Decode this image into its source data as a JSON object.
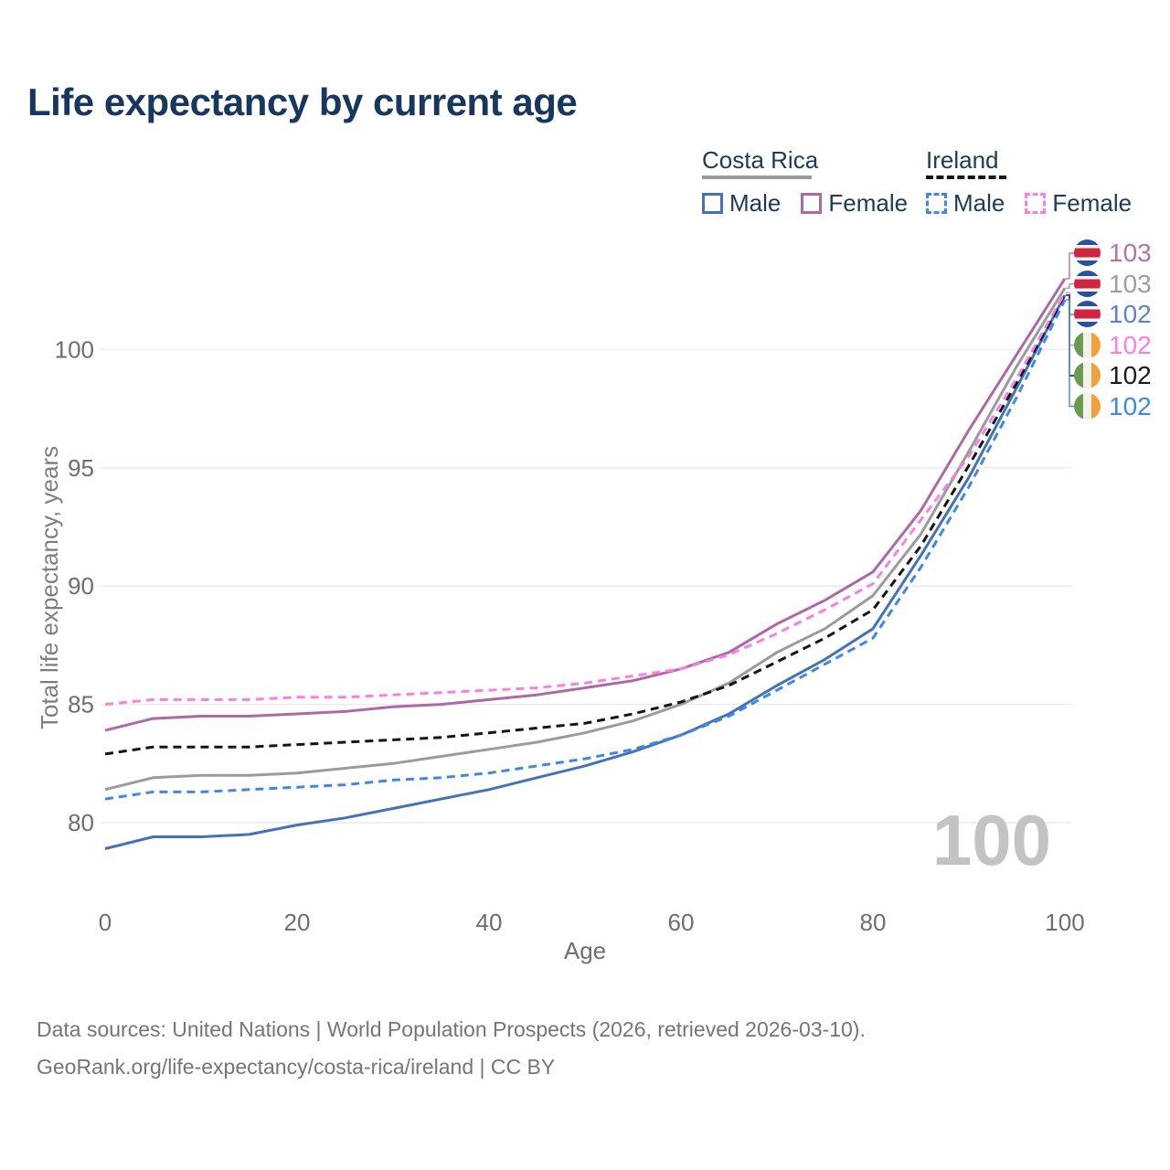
{
  "header": {
    "title": "Life expectancy by current age"
  },
  "legend": {
    "groups": [
      {
        "country": "Costa Rica",
        "line_style": "solid",
        "line_color": "#9a9a9a",
        "underline_width": 120,
        "items": [
          {
            "label": "Male",
            "color": "#4472b8",
            "style": "solid"
          },
          {
            "label": "Female",
            "color": "#ad68a6",
            "style": "solid"
          }
        ]
      },
      {
        "country": "Ireland",
        "line_style": "dashed",
        "line_color": "#141414",
        "underline_width": 88,
        "items": [
          {
            "label": "Male",
            "color": "#3f87e5",
            "style": "dashed"
          },
          {
            "label": "Female",
            "color": "#fa7fe3",
            "style": "dashed"
          }
        ]
      }
    ]
  },
  "chart_data": {
    "type": "line",
    "title": "Life expectancy by current age",
    "xlabel": "Age",
    "ylabel": "Total life expectancy, years",
    "x": [
      0,
      5,
      10,
      15,
      20,
      25,
      30,
      35,
      40,
      45,
      50,
      55,
      60,
      65,
      70,
      75,
      80,
      85,
      90,
      95,
      100
    ],
    "x_ticks": [
      0,
      20,
      40,
      60,
      80,
      100
    ],
    "y_ticks": [
      80,
      85,
      90,
      95,
      100
    ],
    "xlim": [
      0,
      100
    ],
    "ylim": [
      78.5,
      103.5
    ],
    "grid": "horizontal-only",
    "legend_position": "top-right",
    "watermark_age_counter": "100",
    "series": [
      {
        "id": "costa_rica_both",
        "name": "Costa Rica — Both sexes",
        "color": "#9b9b9b",
        "dash": "solid",
        "values": [
          81.4,
          81.9,
          82.0,
          82.0,
          82.1,
          82.3,
          82.5,
          82.8,
          83.1,
          83.4,
          83.8,
          84.3,
          85.0,
          85.9,
          87.2,
          88.2,
          89.6,
          92.2,
          95.7,
          99.3,
          102.6
        ]
      },
      {
        "id": "costa_rica_male",
        "name": "Costa Rica — Male",
        "color": "#4472b8",
        "dash": "solid",
        "values": [
          78.9,
          79.4,
          79.4,
          79.5,
          79.9,
          80.2,
          80.6,
          81.0,
          81.4,
          81.9,
          82.4,
          83.0,
          83.7,
          84.6,
          85.8,
          86.9,
          88.2,
          91.3,
          94.6,
          98.4,
          102.3
        ]
      },
      {
        "id": "costa_rica_female",
        "name": "Costa Rica — Female",
        "color": "#ad68a6",
        "dash": "solid",
        "values": [
          83.9,
          84.4,
          84.5,
          84.5,
          84.6,
          84.7,
          84.9,
          85.0,
          85.2,
          85.4,
          85.7,
          86.0,
          86.5,
          87.2,
          88.4,
          89.4,
          90.6,
          93.2,
          96.6,
          99.8,
          103.0
        ]
      },
      {
        "id": "ireland_both",
        "name": "Ireland — Both sexes",
        "color": "#141414",
        "dash": "dashed",
        "values": [
          82.9,
          83.2,
          83.2,
          83.2,
          83.3,
          83.4,
          83.5,
          83.6,
          83.8,
          84.0,
          84.2,
          84.6,
          85.1,
          85.8,
          86.8,
          87.8,
          89.0,
          91.7,
          95.1,
          98.6,
          102.3
        ]
      },
      {
        "id": "ireland_male",
        "name": "Ireland — Male",
        "color": "#3f87e5",
        "dash": "dashed",
        "values": [
          81.0,
          81.3,
          81.3,
          81.4,
          81.5,
          81.6,
          81.8,
          81.9,
          82.1,
          82.4,
          82.7,
          83.1,
          83.7,
          84.5,
          85.6,
          86.7,
          87.8,
          90.8,
          94.2,
          98.0,
          102.1
        ]
      },
      {
        "id": "ireland_female",
        "name": "Ireland — Female",
        "color": "#fa7fe3",
        "dash": "dashed",
        "values": [
          85.0,
          85.2,
          85.2,
          85.2,
          85.3,
          85.3,
          85.4,
          85.5,
          85.6,
          85.7,
          85.9,
          86.2,
          86.5,
          87.1,
          88.0,
          89.0,
          90.1,
          92.8,
          95.5,
          98.8,
          102.4
        ]
      }
    ],
    "end_labels": [
      {
        "value": "103",
        "series": "costa_rica_female",
        "flag": "costa-rica",
        "color": "#b173aa"
      },
      {
        "value": "103",
        "series": "costa_rica_both",
        "flag": "costa-rica",
        "color": "#9e9e9e"
      },
      {
        "value": "102",
        "series": "costa_rica_male",
        "flag": "costa-rica",
        "color": "#5b84c6"
      },
      {
        "value": "102",
        "series": "ireland_female",
        "flag": "ireland",
        "color": "#fa7fe3"
      },
      {
        "value": "102",
        "series": "ireland_both",
        "flag": "ireland",
        "color": "#1a1a1a"
      },
      {
        "value": "102",
        "series": "ireland_male",
        "flag": "ireland",
        "color": "#3f87e5"
      }
    ]
  },
  "footer": {
    "line1": "Data sources: United Nations | World Population Prospects (2026, retrieved 2026-03-10).",
    "line2": "GeoRank.org/life-expectancy/costa-rica/ireland | CC BY"
  }
}
